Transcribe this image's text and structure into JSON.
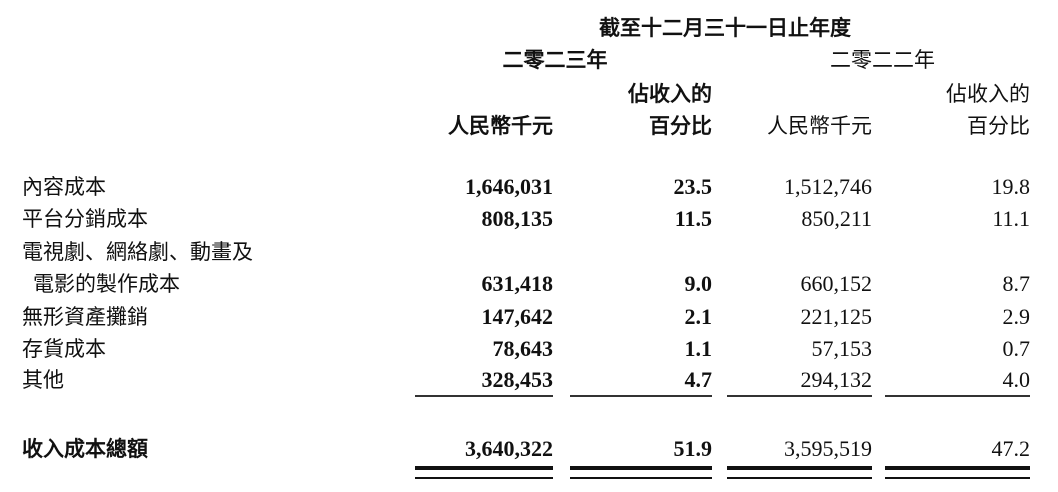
{
  "header": {
    "period": "截至十二月三十一日止年度",
    "year_2023": "二零二三年",
    "year_2022": "二零二二年",
    "col_rmb": "人民幣千元",
    "col_pct_line1": "佔收入的",
    "col_pct_line2": "百分比"
  },
  "rows": [
    {
      "label": "內容成本",
      "v2023": "1,646,031",
      "p2023": "23.5",
      "v2022": "1,512,746",
      "p2022": "19.8"
    },
    {
      "label": "平台分銷成本",
      "v2023": "808,135",
      "p2023": "11.5",
      "v2022": "850,211",
      "p2022": "11.1"
    },
    {
      "label": "電視劇、網絡劇、動畫及",
      "label2": "電影的製作成本",
      "v2023": "631,418",
      "p2023": "9.0",
      "v2022": "660,152",
      "p2022": "8.7"
    },
    {
      "label": "無形資產攤銷",
      "v2023": "147,642",
      "p2023": "2.1",
      "v2022": "221,125",
      "p2022": "2.9"
    },
    {
      "label": "存貨成本",
      "v2023": "78,643",
      "p2023": "1.1",
      "v2022": "57,153",
      "p2022": "0.7"
    },
    {
      "label": "其他",
      "v2023": "328,453",
      "p2023": "4.7",
      "v2022": "294,132",
      "p2022": "4.0"
    }
  ],
  "total": {
    "label": "收入成本總額",
    "v2023": "3,640,322",
    "p2023": "51.9",
    "v2022": "3,595,519",
    "p2022": "47.2"
  }
}
